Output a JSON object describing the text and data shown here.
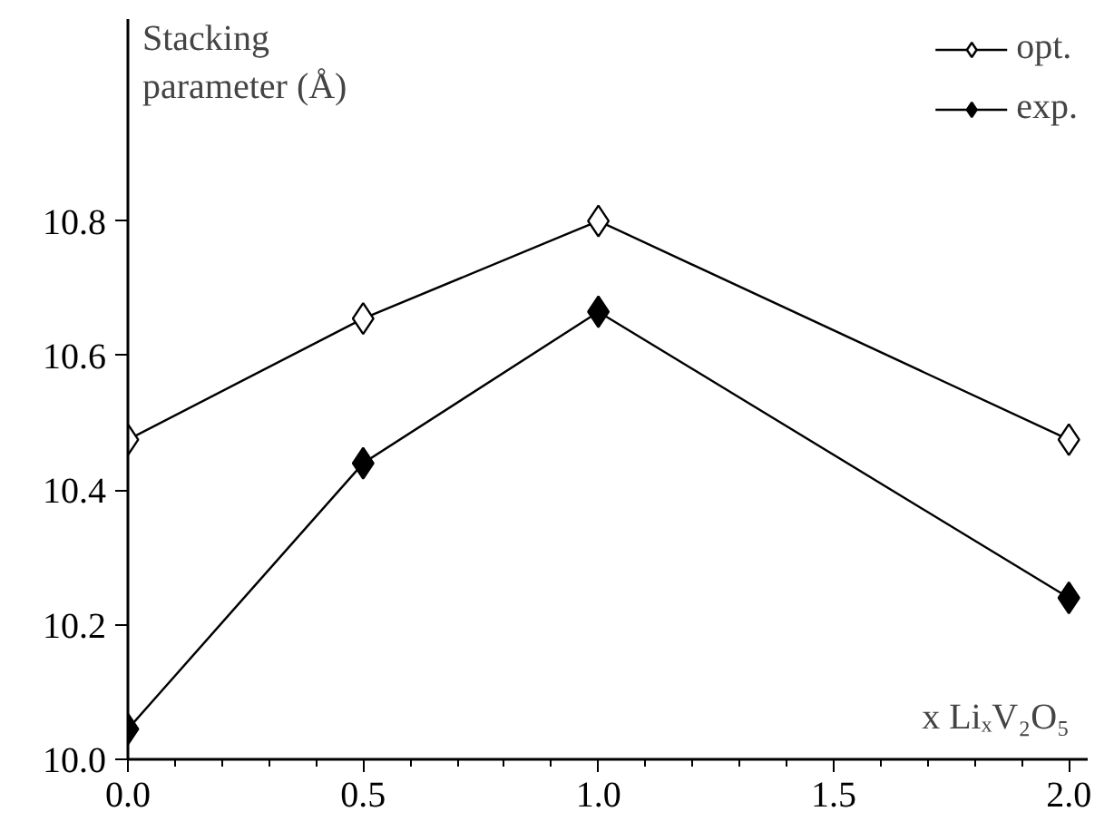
{
  "chart_data": {
    "type": "line",
    "ylabel": "Stacking parameter (Å)",
    "xlabel": "x LiₓV₂O₅",
    "x": [
      0.0,
      0.5,
      1.0,
      2.0
    ],
    "series": [
      {
        "name": "opt.",
        "color": "#ffffff",
        "values": [
          10.475,
          10.655,
          10.8,
          10.475
        ]
      },
      {
        "name": "exp.",
        "color": "#000000",
        "values": [
          10.045,
          10.44,
          10.665,
          10.24
        ]
      }
    ],
    "xlim": [
      0,
      2.04
    ],
    "ylim": [
      10.0,
      11.1
    ],
    "xticks": [
      {
        "value": 0.0,
        "label": "0.0"
      },
      {
        "value": 0.5,
        "label": "0.5"
      },
      {
        "value": 1.0,
        "label": "1.0"
      },
      {
        "value": 1.5,
        "label": "1.5"
      },
      {
        "value": 2.0,
        "label": "2.0"
      }
    ],
    "yticks": [
      {
        "value": 10.0,
        "label": "10.0"
      },
      {
        "value": 10.2,
        "label": "10.2"
      },
      {
        "value": 10.4,
        "label": "10.4"
      },
      {
        "value": 10.6,
        "label": "10.6"
      },
      {
        "value": 10.8,
        "label": "10.8"
      }
    ],
    "grid": false,
    "marker": "diamond",
    "legend": "top right",
    "line_style": "solid"
  }
}
